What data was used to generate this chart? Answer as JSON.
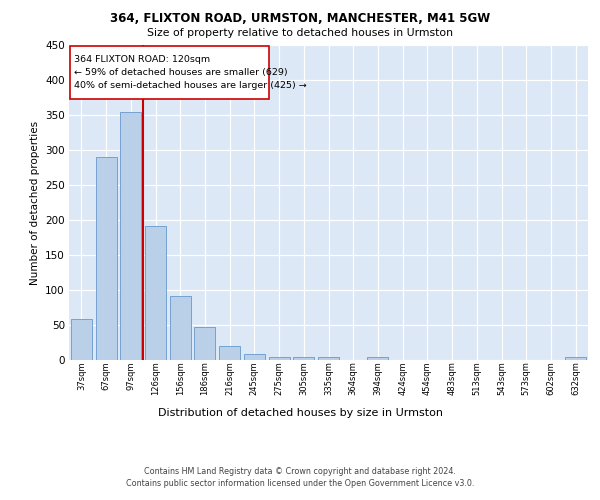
{
  "title_line1": "364, FLIXTON ROAD, URMSTON, MANCHESTER, M41 5GW",
  "title_line2": "Size of property relative to detached houses in Urmston",
  "xlabel": "Distribution of detached houses by size in Urmston",
  "ylabel": "Number of detached properties",
  "categories": [
    "37sqm",
    "67sqm",
    "97sqm",
    "126sqm",
    "156sqm",
    "186sqm",
    "216sqm",
    "245sqm",
    "275sqm",
    "305sqm",
    "335sqm",
    "364sqm",
    "394sqm",
    "424sqm",
    "454sqm",
    "483sqm",
    "513sqm",
    "543sqm",
    "573sqm",
    "602sqm",
    "632sqm"
  ],
  "values": [
    59,
    290,
    355,
    192,
    92,
    47,
    20,
    8,
    4,
    5,
    5,
    0,
    4,
    0,
    0,
    0,
    0,
    0,
    0,
    0,
    4
  ],
  "bar_color": "#bad0e8",
  "bar_edge_color": "#6699cc",
  "annotation_line1": "364 FLIXTON ROAD: 120sqm",
  "annotation_line2": "← 59% of detached houses are smaller (629)",
  "annotation_line3": "40% of semi-detached houses are larger (425) →",
  "vline_color": "#cc0000",
  "box_color": "#cc0000",
  "footer_line1": "Contains HM Land Registry data © Crown copyright and database right 2024.",
  "footer_line2": "Contains public sector information licensed under the Open Government Licence v3.0.",
  "ylim": [
    0,
    450
  ],
  "yticks": [
    0,
    50,
    100,
    150,
    200,
    250,
    300,
    350,
    400,
    450
  ],
  "bg_color": "#dce8f5",
  "fig_bg_color": "#ffffff"
}
